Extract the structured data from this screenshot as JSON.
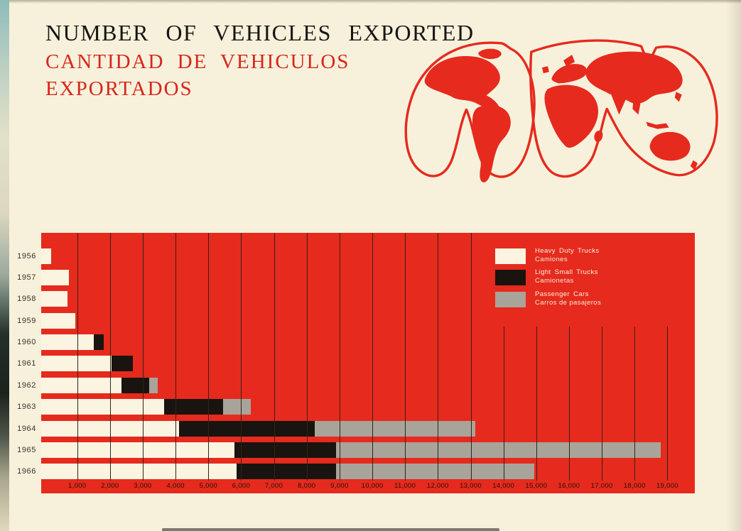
{
  "titles": {
    "en": "NUMBER OF VEHICLES EXPORTED",
    "es_line1": "CANTIDAD DE VEHICULOS",
    "es_line2": "EXPORTADOS"
  },
  "colors": {
    "page_background": "#f7f1dc",
    "chart_red": "#e62a1d",
    "title_red": "#d8261b",
    "heavy_duty_trucks": "#faf4e1",
    "light_small_trucks": "#19140f",
    "passenger_cars": "#a8a49a",
    "gridline": "#33231a",
    "year_label": "#38332b",
    "axis_label": "#221309",
    "legend_text": "#faf3e0"
  },
  "legend": [
    {
      "label_en": "Heavy Duty Trucks",
      "label_es": "Camiones",
      "color": "#faf4e1"
    },
    {
      "label_en": "Light Small Trucks",
      "label_es": "Camionetas",
      "color": "#19140f"
    },
    {
      "label_en": "Passenger Cars",
      "label_es": "Carros de pasajeros",
      "color": "#a8a49a"
    }
  ],
  "chart_data": {
    "type": "bar",
    "orientation": "horizontal",
    "stacked": true,
    "title": "Number of Vehicles Exported / Cantidad de Vehiculos Exportados",
    "categories": [
      "1956",
      "1957",
      "1958",
      "1959",
      "1960",
      "1961",
      "1962",
      "1963",
      "1964",
      "1965",
      "1966"
    ],
    "series": [
      {
        "name": "Heavy Duty Trucks / Camiones",
        "values": [
          200,
          750,
          700,
          950,
          1500,
          2050,
          2350,
          3650,
          4100,
          5800,
          5850
        ]
      },
      {
        "name": "Light Small Trucks / Camionetas",
        "values": [
          0,
          0,
          0,
          0,
          300,
          650,
          850,
          1800,
          4150,
          3100,
          3050
        ]
      },
      {
        "name": "Passenger Cars / Carros de pasajeros",
        "values": [
          0,
          0,
          0,
          0,
          0,
          0,
          250,
          850,
          4900,
          9900,
          6050
        ]
      }
    ],
    "totals": [
      200,
      750,
      700,
      950,
      1800,
      2700,
      3450,
      6300,
      13150,
      18800,
      14950
    ],
    "x_tick_labels": [
      "1,000",
      "2,000",
      "3,000",
      "4,000",
      "5,000",
      "6,000",
      "7,000",
      "8,000",
      "9,000",
      "10,000",
      "11,000",
      "12,000",
      "13,000",
      "14,000",
      "15,000",
      "16,000",
      "17,000",
      "18,000",
      "19,000"
    ],
    "xlim": [
      0,
      20000
    ],
    "grid": true,
    "legend_position": "top-right"
  }
}
